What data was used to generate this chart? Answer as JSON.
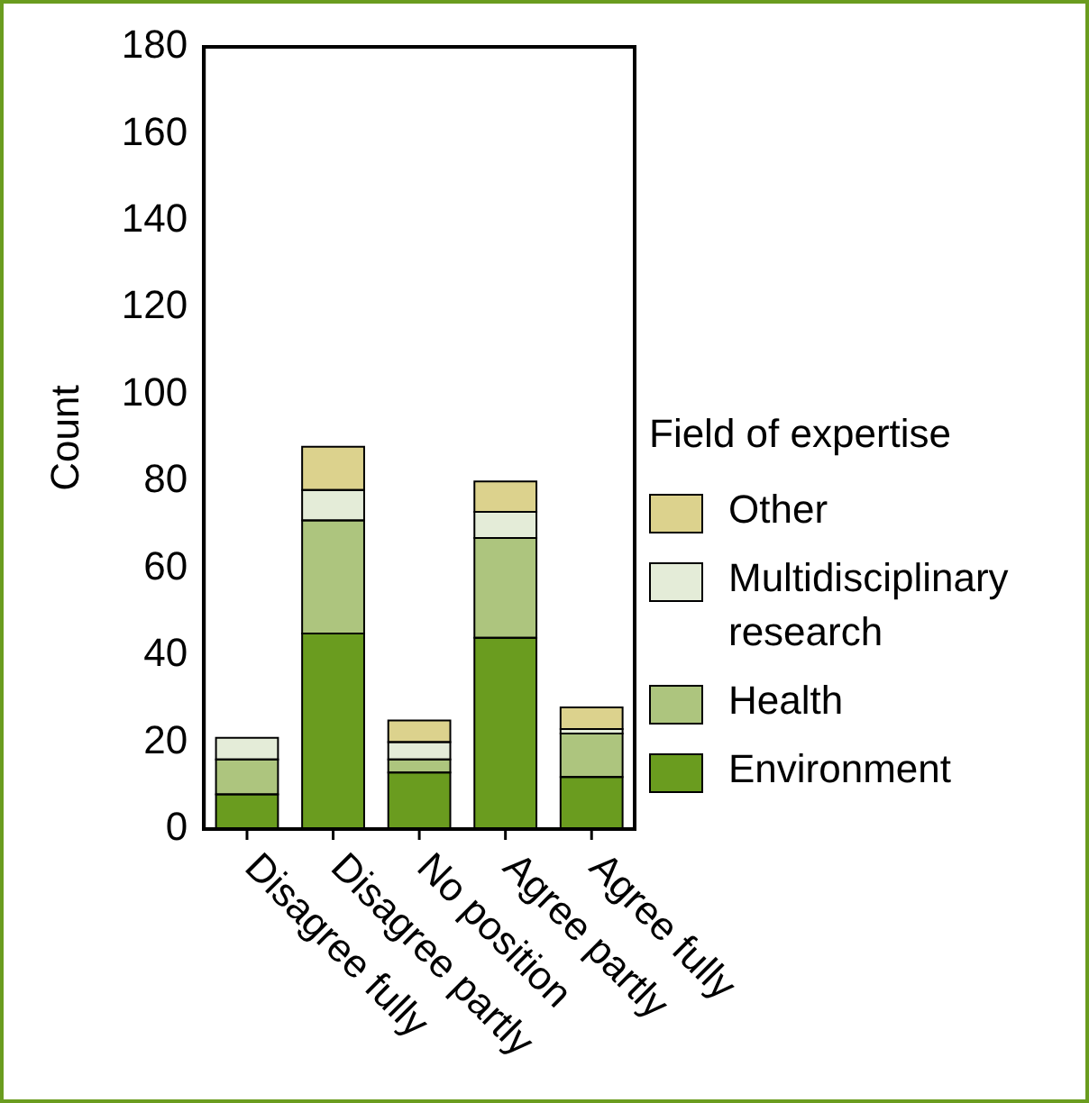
{
  "chart_data": {
    "type": "bar",
    "stacked": true,
    "ylabel": "Count",
    "legend_title": "Field of expertise",
    "legend": "right",
    "categories": [
      "Disagree fully",
      "Disagree partly",
      "No position",
      "Agree partly",
      "Agree fully"
    ],
    "series": [
      {
        "name": "Environment",
        "color": "#6a9c1f",
        "values": [
          8,
          45,
          13,
          44,
          12
        ]
      },
      {
        "name": "Health",
        "color": "#adc57e",
        "values": [
          8,
          26,
          3,
          23,
          10
        ]
      },
      {
        "name": "Multidisciplinary research",
        "color": "#e4ecd8",
        "values": [
          5,
          7,
          4,
          6,
          1
        ]
      },
      {
        "name": "Other",
        "color": "#dcd28d",
        "values": [
          0,
          10,
          5,
          7,
          5
        ]
      }
    ],
    "ylim": [
      0,
      180
    ],
    "yticks": [
      0,
      20,
      40,
      60,
      80,
      100,
      120,
      140,
      160,
      180
    ],
    "grid": false
  }
}
